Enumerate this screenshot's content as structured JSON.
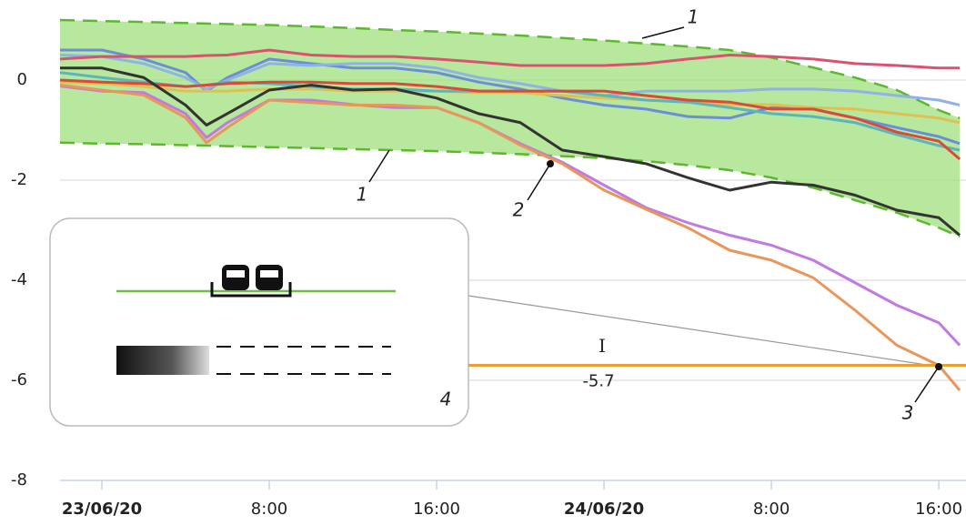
{
  "chart_data": {
    "type": "line",
    "x": [
      -2,
      0,
      2,
      4,
      5,
      6,
      8,
      10,
      12,
      14,
      16,
      18,
      20,
      22,
      24,
      26,
      28,
      30,
      32,
      34,
      36,
      38,
      40,
      41
    ],
    "xlim": [
      -2,
      41.3
    ],
    "xticks": [
      {
        "value": 0,
        "label": "23/06/20"
      },
      {
        "value": 8,
        "label": "8:00"
      },
      {
        "value": 16,
        "label": "16:00"
      },
      {
        "value": 24,
        "label": "24/06/20"
      },
      {
        "value": 32,
        "label": "8:00"
      },
      {
        "value": 40,
        "label": "16:00"
      }
    ],
    "ylim": [
      -8,
      1.6
    ],
    "yticks": [
      0,
      -2,
      -4,
      -6,
      -8
    ],
    "grid": true,
    "band": {
      "color": "#9fe07c",
      "edge_color": "#5cb82e",
      "upper": [
        1.2,
        1.18,
        1.16,
        1.14,
        1.13,
        1.12,
        1.1,
        1.07,
        1.04,
        1.0,
        0.97,
        0.93,
        0.89,
        0.84,
        0.79,
        0.73,
        0.67,
        0.6,
        0.45,
        0.25,
        0.05,
        -0.2,
        -0.6,
        -0.76
      ],
      "lower": [
        -1.25,
        -1.27,
        -1.28,
        -1.3,
        -1.31,
        -1.32,
        -1.34,
        -1.36,
        -1.38,
        -1.4,
        -1.42,
        -1.45,
        -1.48,
        -1.52,
        -1.56,
        -1.62,
        -1.7,
        -1.8,
        -1.95,
        -2.15,
        -2.4,
        -2.65,
        -2.95,
        -3.13
      ]
    },
    "series": [
      {
        "color": "#6a8fd8",
        "values": [
          0.6,
          0.6,
          0.42,
          0.15,
          -0.22,
          0.05,
          0.42,
          0.33,
          0.24,
          0.24,
          0.15,
          -0.04,
          -0.18,
          -0.36,
          -0.5,
          -0.58,
          -0.73,
          -0.76,
          -0.55,
          -0.58,
          -0.76,
          -0.95,
          -1.13,
          -1.27
        ]
      },
      {
        "color": "#8fb3e6",
        "values": [
          0.5,
          0.47,
          0.33,
          0.05,
          -0.18,
          0,
          0.33,
          0.29,
          0.33,
          0.33,
          0.24,
          0.05,
          -0.07,
          -0.22,
          -0.31,
          -0.22,
          -0.22,
          -0.22,
          -0.18,
          -0.18,
          -0.22,
          -0.31,
          -0.4,
          -0.5
        ]
      },
      {
        "color": "#e0c050",
        "values": [
          -0.04,
          -0.07,
          -0.13,
          -0.22,
          -0.22,
          -0.22,
          -0.18,
          -0.18,
          -0.22,
          -0.22,
          -0.22,
          -0.25,
          -0.25,
          -0.31,
          -0.36,
          -0.4,
          -0.44,
          -0.49,
          -0.49,
          -0.55,
          -0.58,
          -0.67,
          -0.76,
          -0.85
        ]
      },
      {
        "color": "#5ab5bd",
        "values": [
          0.15,
          0.05,
          -0.04,
          -0.13,
          -0.1,
          -0.04,
          -0.07,
          -0.13,
          -0.18,
          -0.18,
          -0.22,
          -0.22,
          -0.22,
          -0.22,
          -0.31,
          -0.4,
          -0.44,
          -0.55,
          -0.67,
          -0.73,
          -0.85,
          -1.09,
          -1.31,
          -1.4
        ]
      },
      {
        "color": "#d94a3a",
        "values": [
          0,
          -0.04,
          -0.07,
          -0.13,
          -0.1,
          -0.07,
          -0.04,
          -0.04,
          -0.07,
          -0.07,
          -0.13,
          -0.22,
          -0.22,
          -0.22,
          -0.22,
          -0.31,
          -0.4,
          -0.44,
          -0.58,
          -0.58,
          -0.76,
          -1.04,
          -1.22,
          -1.58
        ]
      },
      {
        "color": "#d9536e",
        "values": [
          0.42,
          0.47,
          0.47,
          0.47,
          0.49,
          0.5,
          0.6,
          0.5,
          0.47,
          0.47,
          0.42,
          0.36,
          0.29,
          0.29,
          0.29,
          0.33,
          0.42,
          0.5,
          0.47,
          0.42,
          0.33,
          0.29,
          0.24,
          0.24
        ]
      },
      {
        "color": "#c07ae0",
        "values": [
          -0.12,
          -0.22,
          -0.25,
          -0.67,
          -1.15,
          -0.85,
          -0.4,
          -0.4,
          -0.49,
          -0.55,
          -0.55,
          -0.85,
          -1.27,
          -1.64,
          -2.1,
          -2.55,
          -2.85,
          -3.1,
          -3.3,
          -3.6,
          -4.05,
          -4.5,
          -4.85,
          -5.3
        ]
      },
      {
        "color": "#e8965a",
        "values": [
          -0.1,
          -0.2,
          -0.3,
          -0.75,
          -1.25,
          -0.95,
          -0.4,
          -0.45,
          -0.5,
          -0.5,
          -0.55,
          -0.85,
          -1.3,
          -1.67,
          -2.2,
          -2.58,
          -2.95,
          -3.4,
          -3.6,
          -3.95,
          -4.6,
          -5.3,
          -5.7,
          -6.2
        ]
      },
      {
        "color": "#333333",
        "values": [
          0.24,
          0.24,
          0.05,
          -0.5,
          -0.9,
          -0.67,
          -0.2,
          -0.1,
          -0.2,
          -0.18,
          -0.36,
          -0.67,
          -0.85,
          -1.4,
          -1.53,
          -1.67,
          -1.95,
          -2.2,
          -2.04,
          -2.1,
          -2.3,
          -2.6,
          -2.75,
          -3.1
        ]
      }
    ],
    "reference_line": {
      "value": -5.7,
      "name": "I",
      "color": "#eaa030"
    },
    "annotations": [
      "1",
      "1",
      "2",
      "3",
      "4"
    ]
  }
}
